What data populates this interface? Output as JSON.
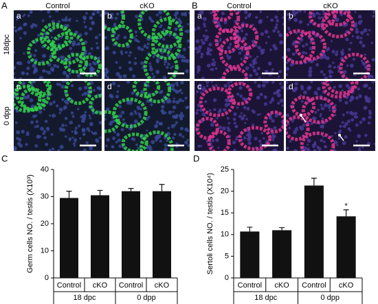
{
  "panels": [
    {
      "label": "A",
      "col_headers": [
        "Control",
        "cKO"
      ],
      "row_headers": [
        "18dpc",
        "0 dpp"
      ],
      "sub": [
        "a",
        "b",
        "c",
        "d"
      ]
    },
    {
      "label": "B",
      "col_headers": [
        "Control",
        "cKO"
      ],
      "sub": [
        "a",
        "b",
        "c",
        "d"
      ]
    }
  ],
  "chart_data": [
    {
      "type": "bar",
      "panel": "C",
      "ylabel": "Germ cells NO. / testis (X10³)",
      "categories": [
        "Control",
        "cKO",
        "Control",
        "cKO"
      ],
      "groups": [
        "18 dpc",
        "0 dpp"
      ],
      "values": [
        29.5,
        30.5,
        32,
        32
      ],
      "errors": [
        2.5,
        1.8,
        1,
        2.5
      ],
      "color": "#111111",
      "ylim": [
        0,
        40
      ],
      "yticks": [
        0,
        10,
        20,
        30,
        40
      ]
    },
    {
      "type": "bar",
      "panel": "D",
      "ylabel": "Sertoli cells NO. / testis (X10⁴)",
      "categories": [
        "Control",
        "cKO",
        "Control",
        "cKO"
      ],
      "groups": [
        "18 dpc",
        "0 dpp"
      ],
      "values": [
        10.7,
        11,
        21.3,
        14.2
      ],
      "errors": [
        1,
        0.6,
        1.7,
        1.5
      ],
      "color": "#111111",
      "ylim": [
        0,
        25
      ],
      "yticks": [
        0,
        5,
        10,
        15,
        20,
        25
      ],
      "annotations": [
        {
          "text": "*",
          "index": 3
        }
      ]
    }
  ]
}
